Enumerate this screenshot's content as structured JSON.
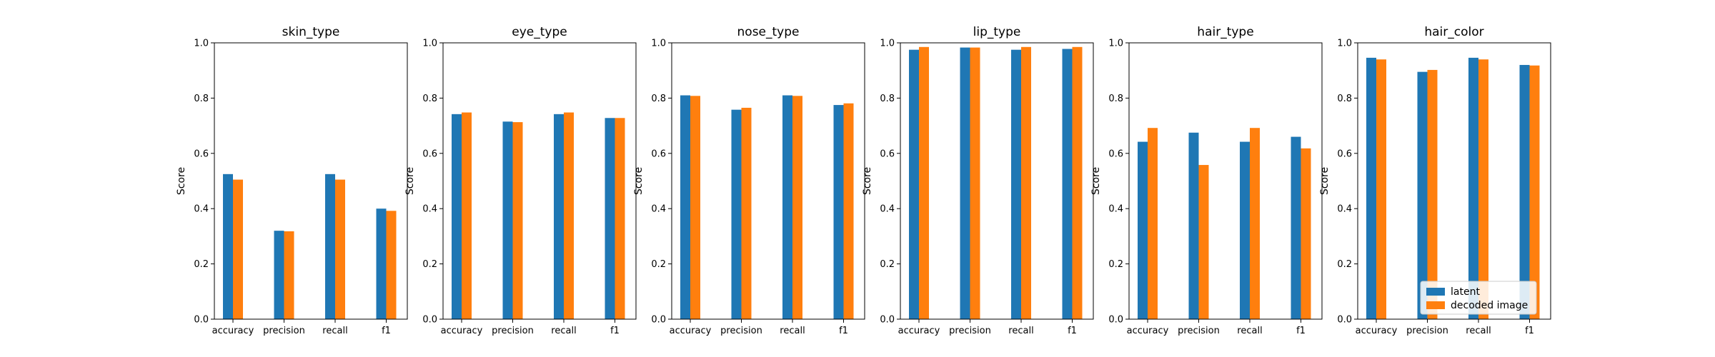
{
  "chart_data": {
    "type": "bar",
    "ylabel": "Score",
    "ylim": [
      0,
      1.0
    ],
    "yticks": [
      "0.0",
      "0.2",
      "0.4",
      "0.6",
      "0.8",
      "1.0"
    ],
    "categories": [
      "accuracy",
      "precision",
      "recall",
      "f1"
    ],
    "legend": {
      "placement": "lower-right-of-last-panel",
      "entries": [
        {
          "name": "latent",
          "color": "#1f77b4"
        },
        {
          "name": "decoded image",
          "color": "#ff7f0e"
        }
      ]
    },
    "panels": [
      {
        "title": "skin_type",
        "series": [
          {
            "name": "latent",
            "values": [
              0.525,
              0.32,
              0.525,
              0.4
            ]
          },
          {
            "name": "decoded image",
            "values": [
              0.505,
              0.318,
              0.505,
              0.392
            ]
          }
        ]
      },
      {
        "title": "eye_type",
        "series": [
          {
            "name": "latent",
            "values": [
              0.742,
              0.715,
              0.742,
              0.728
            ]
          },
          {
            "name": "decoded image",
            "values": [
              0.748,
              0.713,
              0.748,
              0.728
            ]
          }
        ]
      },
      {
        "title": "nose_type",
        "series": [
          {
            "name": "latent",
            "values": [
              0.81,
              0.758,
              0.81,
              0.775
            ]
          },
          {
            "name": "decoded image",
            "values": [
              0.808,
              0.765,
              0.808,
              0.781
            ]
          }
        ]
      },
      {
        "title": "lip_type",
        "series": [
          {
            "name": "latent",
            "values": [
              0.975,
              0.983,
              0.975,
              0.978
            ]
          },
          {
            "name": "decoded image",
            "values": [
              0.985,
              0.983,
              0.985,
              0.985
            ]
          }
        ]
      },
      {
        "title": "hair_type",
        "series": [
          {
            "name": "latent",
            "values": [
              0.642,
              0.675,
              0.642,
              0.66
            ]
          },
          {
            "name": "decoded image",
            "values": [
              0.692,
              0.558,
              0.692,
              0.618
            ]
          }
        ]
      },
      {
        "title": "hair_color",
        "series": [
          {
            "name": "latent",
            "values": [
              0.946,
              0.895,
              0.946,
              0.92
            ]
          },
          {
            "name": "decoded image",
            "values": [
              0.94,
              0.902,
              0.94,
              0.918
            ]
          }
        ]
      }
    ]
  }
}
